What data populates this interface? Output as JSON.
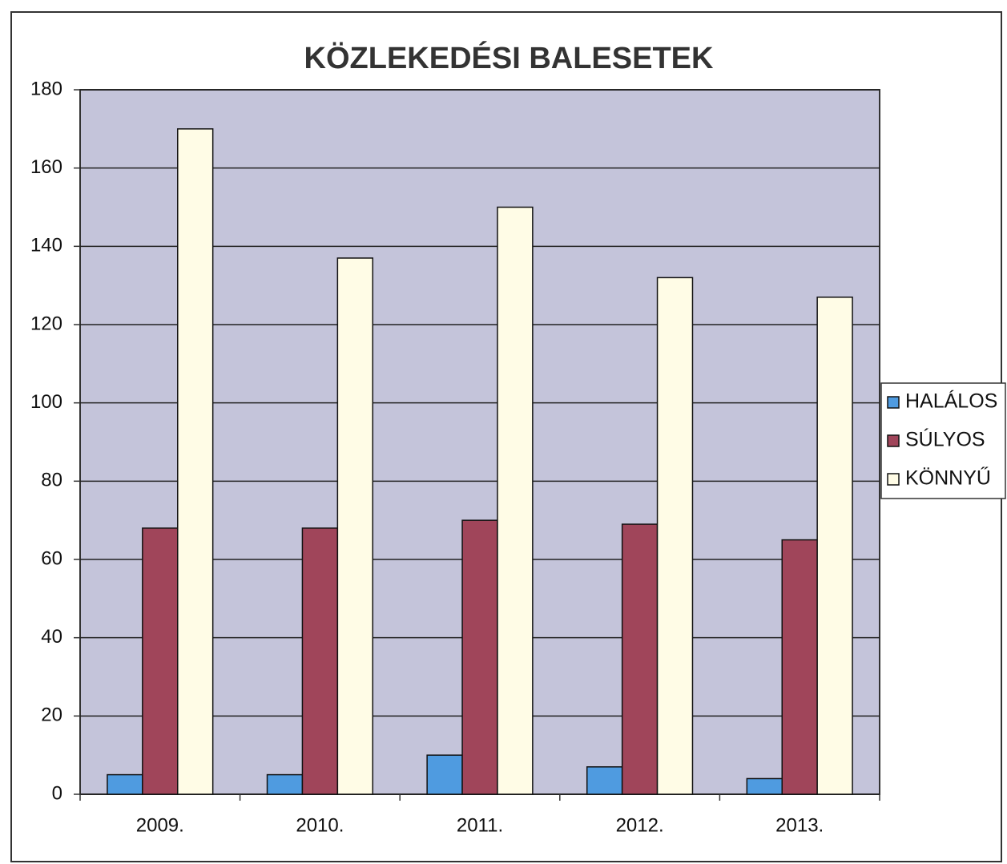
{
  "chart_data": {
    "type": "bar",
    "title": "KÖZLEKEDÉSI BALESETEK",
    "categories": [
      "2009.",
      "2010.",
      "2011.",
      "2012.",
      "2013."
    ],
    "series": [
      {
        "name": "HALÁLOS",
        "color": "#4f9be0",
        "values": [
          5,
          5,
          10,
          7,
          4
        ]
      },
      {
        "name": "SÚLYOS",
        "color": "#a0455a",
        "values": [
          68,
          68,
          70,
          69,
          65
        ]
      },
      {
        "name": "KÖNNYŰ",
        "color": "#fffce6",
        "values": [
          170,
          137,
          150,
          132,
          127
        ]
      }
    ],
    "ylim": [
      0,
      180
    ],
    "yticks": [
      0,
      20,
      40,
      60,
      80,
      100,
      120,
      140,
      160,
      180
    ],
    "grid": true,
    "legend": "right"
  }
}
